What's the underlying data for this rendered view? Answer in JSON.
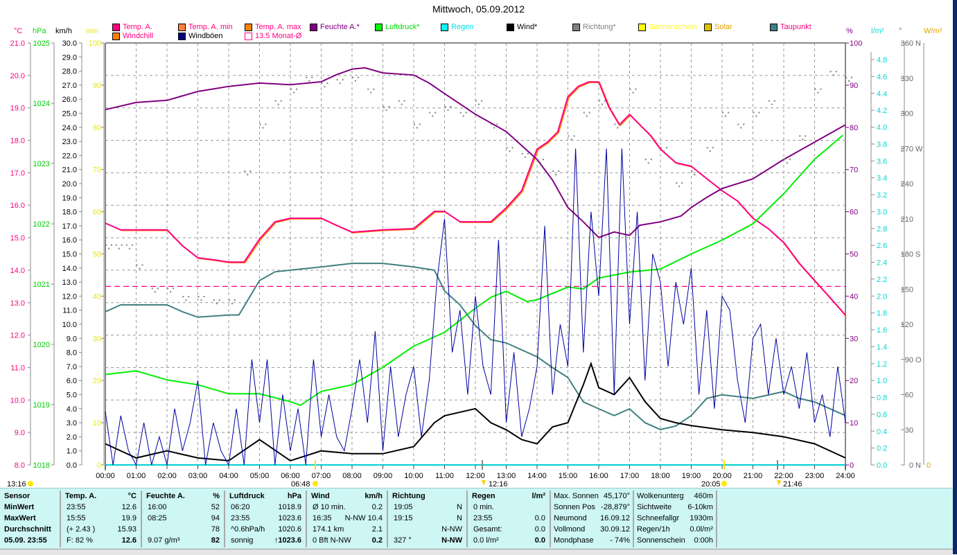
{
  "title": "Mittwoch, 05.09.2012",
  "units": {
    "celsius": "°C",
    "hpa": "hPa",
    "kmh": "km/h",
    "min": "min",
    "percent": "%",
    "rain": "l/m²",
    "degree": "°",
    "solar": "W/m²"
  },
  "legend": [
    {
      "label": "Temp. A.",
      "color": "#ff0080",
      "text_color": "#ff0080"
    },
    {
      "label": "Temp. A. min",
      "color": "#ff8040",
      "text_color": "#ff0080"
    },
    {
      "label": "Temp. A. max",
      "color": "#ff8000",
      "text_color": "#ff0080"
    },
    {
      "label": "Feuchte A.*",
      "color": "#800080",
      "text_color": "#800080"
    },
    {
      "label": "Luftdruck*",
      "color": "#00ff00",
      "text_color": "#00dd00"
    },
    {
      "label": "Regen",
      "color": "#00ffff",
      "text_color": "#00e0e0"
    },
    {
      "label": "Wind*",
      "color": "#000000",
      "text_color": "#000000"
    },
    {
      "label": "Richtung*",
      "color": "#808080",
      "text_color": "#808080"
    },
    {
      "label": "Sonnenschein",
      "color": "#ffff00",
      "text_color": "#ffff00"
    },
    {
      "label": "Solar",
      "color": "#e0c000",
      "text_color": "#e0a000"
    },
    {
      "label": "Taupunkt",
      "color": "#408080",
      "text_color": "#ff0080"
    },
    {
      "label": "Windchill",
      "color": "#ff8000",
      "text_color": "#ff0080"
    },
    {
      "label": "Windböen",
      "color": "#000080",
      "text_color": "#000000"
    },
    {
      "label": "13.5 Monat-Ø",
      "color": "#ff0080",
      "text_color": "#ff0080"
    }
  ],
  "chart_data": {
    "type": "line",
    "title": "Mittwoch, 05.09.2012",
    "x_ticks": [
      "00:00",
      "01:00",
      "02:00",
      "03:00",
      "04:00",
      "05:00",
      "06:00",
      "07:00",
      "08:00",
      "09:00",
      "10:00",
      "11:00",
      "12:00",
      "13:00",
      "14:00",
      "15:00",
      "16:00",
      "17:00",
      "18:00",
      "19:00",
      "20:00",
      "21:00",
      "22:00",
      "23:00",
      "24:00"
    ],
    "xlim_hours": [
      0,
      24
    ],
    "axes": {
      "celsius": {
        "range": [
          8,
          21
        ],
        "step": 1,
        "decimals": 1
      },
      "hpa": {
        "range": [
          1018,
          1025
        ],
        "step": 1,
        "decimals": 0
      },
      "kmh": {
        "range": [
          0,
          30
        ],
        "step": 1,
        "decimals": 1
      },
      "min": {
        "range": [
          0,
          100
        ],
        "step": 10,
        "decimals": 0
      },
      "percent": {
        "range": [
          0,
          100
        ],
        "step": 10,
        "decimals": 0
      },
      "rain": {
        "range": [
          0,
          4.8
        ],
        "step": 0.2,
        "decimals": 1
      },
      "degree": {
        "range": [
          0,
          360
        ],
        "step": 30,
        "decimals": 0,
        "compass": {
          "0": "N",
          "90": "O",
          "180": "S",
          "270": "W",
          "360": "N"
        }
      },
      "solar": {
        "range": [
          0,
          0
        ],
        "label": "0"
      }
    },
    "monthly_avg_temp": 13.5,
    "series": [
      {
        "name": "Temp. A.",
        "axis": "celsius",
        "color": "#ff0080",
        "x": [
          0,
          0.5,
          2,
          2.5,
          3,
          3.5,
          4,
          4.5,
          5,
          5.5,
          6,
          7,
          7.5,
          8,
          9,
          10,
          10.67,
          11,
          11.5,
          12,
          12.5,
          13,
          13.5,
          14,
          14.33,
          14.67,
          15,
          15.33,
          15.67,
          16,
          16.33,
          16.67,
          17,
          17.33,
          17.67,
          18,
          18.5,
          19,
          19.5,
          20,
          20.5,
          21,
          21.5,
          22,
          22.5,
          23,
          23.5,
          24
        ],
        "y": [
          15.45,
          15.24,
          15.24,
          14.75,
          14.38,
          14.32,
          14.25,
          14.25,
          14.96,
          15.49,
          15.6,
          15.6,
          15.38,
          15.17,
          15.24,
          15.28,
          15.81,
          15.81,
          15.49,
          15.49,
          15.49,
          15.92,
          16.45,
          17.73,
          17.94,
          18.26,
          19.34,
          19.66,
          19.8,
          19.8,
          19.02,
          18.48,
          18.8,
          18.48,
          18.16,
          17.73,
          17.31,
          17.2,
          16.82,
          16.45,
          16.13,
          15.6,
          15.28,
          14.85,
          14.21,
          13.68,
          13.15,
          12.61
        ]
      },
      {
        "name": "Feuchte A.*",
        "axis": "percent",
        "color": "#800080",
        "x": [
          0,
          1,
          2,
          3,
          4,
          5,
          6,
          7,
          7.5,
          8,
          8.42,
          9,
          10,
          10.5,
          11,
          12,
          13,
          14,
          14.5,
          15,
          15.5,
          16,
          16.5,
          17,
          17.33,
          18,
          18.67,
          19,
          19.5,
          20,
          21,
          22,
          23,
          24
        ],
        "y": [
          84.2,
          85.9,
          86.4,
          88.5,
          89.7,
          90.5,
          90.1,
          90.8,
          92.5,
          93.8,
          94.1,
          92.9,
          92.4,
          90.5,
          88,
          83.1,
          79,
          72.4,
          67.5,
          61,
          57.6,
          53.9,
          55.2,
          54.4,
          56.8,
          57.6,
          59,
          61,
          63.4,
          65.5,
          67.8,
          72.4,
          76.5,
          80.6
        ]
      },
      {
        "name": "Luftdruck*",
        "axis": "hpa",
        "color": "#00ee00",
        "x": [
          0,
          1,
          2,
          3,
          4,
          5,
          6,
          6.33,
          7,
          8,
          9,
          10,
          11,
          12,
          12.5,
          13,
          13.67,
          14,
          15,
          15.5,
          16,
          17,
          18,
          19,
          20,
          21,
          22,
          23,
          23.92
        ],
        "y": [
          1019.5,
          1019.56,
          1019.41,
          1019.33,
          1019.18,
          1019.18,
          1019.05,
          1018.99,
          1019.22,
          1019.33,
          1019.62,
          1019.97,
          1020.2,
          1020.6,
          1020.78,
          1020.88,
          1020.71,
          1020.74,
          1020.95,
          1020.92,
          1021.1,
          1021.2,
          1021.25,
          1021.5,
          1021.73,
          1022.0,
          1022.5,
          1023.07,
          1023.47
        ]
      },
      {
        "name": "Taupunkt",
        "axis": "celsius",
        "color": "#408080",
        "x": [
          0,
          0.5,
          2,
          2.5,
          3,
          4,
          4.33,
          5,
          5.5,
          6,
          7,
          8,
          9,
          10,
          10.67,
          11,
          11.5,
          12,
          12.5,
          13,
          14,
          14.5,
          15,
          15.5,
          16,
          16.5,
          17,
          17.5,
          18,
          18.5,
          19,
          19.5,
          20,
          21,
          22,
          22.5,
          23,
          24
        ],
        "y": [
          12.72,
          12.93,
          12.93,
          12.72,
          12.55,
          12.62,
          12.62,
          13.68,
          13.95,
          14.0,
          14.1,
          14.21,
          14.21,
          14.1,
          14.0,
          13.36,
          12.93,
          12.29,
          11.86,
          11.76,
          11.33,
          11.0,
          10.69,
          9.94,
          9.73,
          9.52,
          9.73,
          9.3,
          9.09,
          9.2,
          9.52,
          10.05,
          10.16,
          10.05,
          10.26,
          10.05,
          9.94,
          9.52
        ]
      },
      {
        "name": "Wind*",
        "axis": "kmh",
        "color": "#000000",
        "x": [
          0,
          1,
          2,
          3,
          4,
          5,
          6,
          7,
          8,
          9,
          10,
          10.67,
          11,
          12,
          12.5,
          13,
          13.5,
          14,
          14.5,
          15,
          15.5,
          15.75,
          16,
          16.5,
          17,
          17.5,
          18,
          18.5,
          19,
          20,
          21,
          22,
          23,
          24
        ],
        "y": [
          1.5,
          0.5,
          1.0,
          0.5,
          0.3,
          1.8,
          0.3,
          1.0,
          0.8,
          0.8,
          1.3,
          3.0,
          3.5,
          4.0,
          3.0,
          2.5,
          1.8,
          1.5,
          2.7,
          3.0,
          5.7,
          7.2,
          5.5,
          5.0,
          6.2,
          4.5,
          3.3,
          3.0,
          2.8,
          2.5,
          2.3,
          2.0,
          1.5,
          0.5
        ]
      },
      {
        "name": "Windböen",
        "axis": "kmh",
        "color": "#0000a0",
        "x": [
          0,
          0.25,
          0.5,
          0.75,
          1,
          1.25,
          1.5,
          1.75,
          2,
          2.25,
          2.5,
          2.75,
          3,
          3.25,
          3.5,
          3.75,
          4,
          4.25,
          4.5,
          4.75,
          5,
          5.25,
          5.5,
          5.75,
          6,
          6.25,
          6.5,
          6.75,
          7,
          7.25,
          7.5,
          7.75,
          8,
          8.25,
          8.5,
          8.75,
          9,
          9.25,
          9.5,
          9.75,
          10,
          10.25,
          10.5,
          10.75,
          11,
          11.25,
          11.5,
          11.75,
          12,
          12.25,
          12.5,
          12.75,
          13,
          13.25,
          13.5,
          13.75,
          14,
          14.25,
          14.5,
          14.75,
          15,
          15.25,
          15.5,
          15.75,
          16,
          16.25,
          16.5,
          16.75,
          17,
          17.25,
          17.5,
          17.75,
          18,
          18.25,
          18.5,
          18.75,
          19,
          19.25,
          19.5,
          19.75,
          20,
          20.25,
          20.5,
          20.75,
          21,
          21.25,
          21.5,
          21.75,
          22,
          22.25,
          22.5,
          22.75,
          23,
          23.25,
          23.5,
          23.75,
          24
        ],
        "y": [
          3.8,
          0,
          3.5,
          1,
          0,
          3,
          0,
          2,
          0,
          4,
          1,
          3,
          6,
          0,
          3,
          1,
          0,
          4,
          0,
          7.5,
          3,
          7.5,
          0,
          5,
          1,
          4,
          0,
          7.5,
          2,
          5,
          2,
          1,
          4,
          7.5,
          3,
          9.5,
          1,
          7,
          2,
          5,
          7,
          2,
          6,
          13,
          17.5,
          8,
          11,
          5,
          12,
          7,
          5,
          16,
          3,
          8,
          2,
          4,
          7,
          17,
          5,
          10,
          7,
          22.5,
          8,
          18,
          12,
          22.5,
          5,
          22.5,
          10,
          18,
          6,
          15,
          13,
          7,
          13,
          10,
          14,
          5,
          11,
          4,
          12,
          11,
          6,
          3,
          9,
          10,
          5,
          9,
          5,
          7,
          4,
          8,
          3,
          5,
          2,
          7,
          3
        ]
      },
      {
        "name": "Richtung*",
        "axis": "degree",
        "color": "#808080",
        "style": "dots",
        "x": [
          0,
          0.33,
          0.67,
          1,
          1.5,
          2,
          2.5,
          3,
          3.5,
          4,
          4.5,
          5,
          5.5,
          6,
          6.5,
          7,
          7.5,
          8,
          8.5,
          9,
          9.5,
          10,
          10.5,
          11,
          11.5,
          12,
          12.5,
          13,
          13.5,
          14,
          14.5,
          15,
          15.5,
          16,
          16.5,
          17,
          17.5,
          18,
          18.5,
          19,
          19.5,
          20,
          20.5,
          21,
          21.5,
          22,
          22.5,
          23,
          23.5,
          24
        ],
        "y": [
          187,
          187,
          187,
          170,
          150,
          150,
          143,
          143,
          140,
          140,
          250,
          290,
          310,
          320,
          330,
          325,
          328,
          330,
          320,
          305,
          310,
          290,
          300,
          305,
          300,
          310,
          290,
          270,
          265,
          260,
          250,
          280,
          300,
          310,
          290,
          320,
          260,
          270,
          240,
          250,
          270,
          300,
          290,
          300,
          310,
          260,
          280,
          320,
          335,
          330
        ]
      }
    ]
  },
  "time_marks": {
    "sunrise": "06:48",
    "sunset": "20:05",
    "moonset": "12:16",
    "moonrise": "21:46",
    "left_label": "13:16"
  },
  "table": {
    "sensor": {
      "header": "Sensor",
      "rows": [
        "MinWert",
        "MaxWert",
        "Durchschnitt",
        "05.09. 23:55"
      ]
    },
    "temp": {
      "header": "Temp. A.",
      "unit": "°C",
      "rows": [
        [
          "23:55",
          "12.6"
        ],
        [
          "15:55",
          "19.9"
        ],
        [
          "(+ 2.43 )",
          "15.93"
        ],
        [
          "F: 82 %",
          "12.6"
        ]
      ]
    },
    "feuchte": {
      "header": "Feuchte A.",
      "unit": "%",
      "rows": [
        [
          "16:00",
          "52"
        ],
        [
          "08:25",
          "94"
        ],
        [
          "",
          "78"
        ],
        [
          "9.07 g/m³",
          "82"
        ]
      ]
    },
    "luftdruck": {
      "header": "Luftdruck",
      "unit": "hPa",
      "rows": [
        [
          "06:20",
          "1018.9"
        ],
        [
          "23:55",
          "1023.6"
        ],
        [
          "^0.6hPa/h",
          "1020.6"
        ],
        [
          "sonnig",
          "↑1023.6"
        ]
      ]
    },
    "wind": {
      "header": "Wind",
      "unit": "km/h",
      "rows": [
        [
          "Ø 10 min.",
          "0.2"
        ],
        [
          "16:35",
          "N-NW 10.4"
        ],
        [
          "174.1 km",
          "2.1"
        ],
        [
          "0 Bft N-NW",
          "0.2"
        ]
      ]
    },
    "richtung": {
      "header": "Richtung",
      "unit": "",
      "rows": [
        [
          "19:05",
          "N"
        ],
        [
          "19:15",
          "N"
        ],
        [
          "",
          "N-NW"
        ],
        [
          "327 °",
          "N-NW"
        ]
      ]
    },
    "regen": {
      "header": "Regen",
      "unit": "l/m²",
      "rows": [
        [
          "0 min.",
          ""
        ],
        [
          "23:55",
          "0.0"
        ],
        [
          "Gesamt:",
          "0.0"
        ],
        [
          "0.0 l/m²",
          "0.0"
        ]
      ]
    },
    "sonne": {
      "rows": [
        [
          "Max. Sonnen",
          "45,170°"
        ],
        [
          "Sonnen Pos",
          "-28,879°"
        ],
        [
          "Neumond",
          "16.09.12"
        ],
        [
          "Vollmond",
          "30.09.12"
        ],
        [
          "Mondphase",
          "- 74%"
        ]
      ]
    },
    "wolken": {
      "rows": [
        [
          "Wolkenunterg",
          "460m"
        ],
        [
          "Sichtweite",
          "6-10km"
        ],
        [
          "Schneefallgr",
          "1930m"
        ],
        [
          "Regen/1h",
          "0.0l/m²"
        ],
        [
          "Sonnenschein",
          "0:00h"
        ]
      ]
    }
  }
}
